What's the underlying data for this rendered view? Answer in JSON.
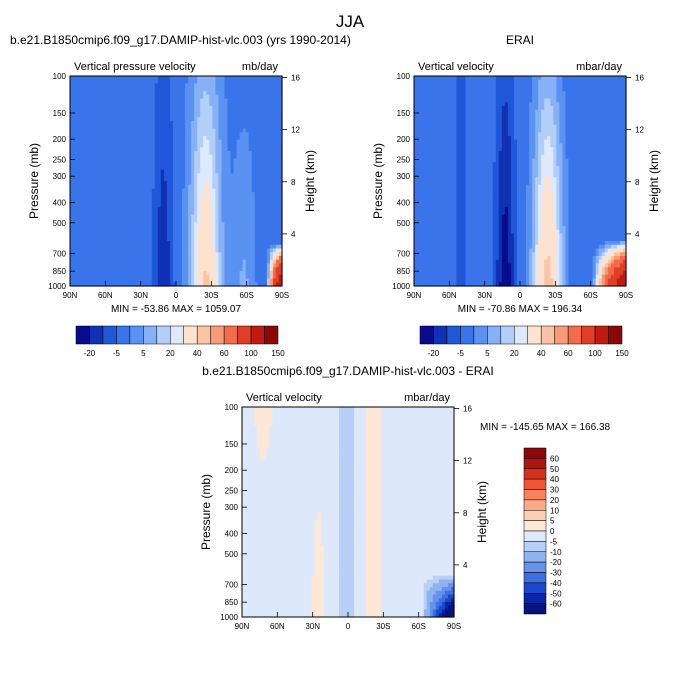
{
  "figure_title": "JJA",
  "chart_data": [
    {
      "type": "heatmap",
      "id": "model",
      "title": "b.e21.B1850cmip6.f09_g17.DAMIP-hist-vlc.003 (yrs 1990-2014)",
      "left_label": "Vertical pressure velocity",
      "right_label": "mb/day",
      "ylabel": "Pressure (mb)",
      "ylabel_right": "Height (km)",
      "x_ticks": [
        "90N",
        "60N",
        "30N",
        "0",
        "30S",
        "60S",
        "90S"
      ],
      "y_ticks": [
        "100",
        "150",
        "200",
        "250",
        "300",
        "400",
        "500",
        "700",
        "850",
        "1000"
      ],
      "height_ticks": [
        "16",
        "12",
        "8",
        "4"
      ],
      "stats": "MIN = -53.86   MAX = 1059.07",
      "min": -53.86,
      "max": 1059.07,
      "colorbar_levels": [
        "-20",
        "-5",
        "5",
        "20",
        "40",
        "60",
        "100",
        "150"
      ],
      "structure": "Weak descent (-10 to -20 mb/day) over most of the domain; strong ascent core (< -30) near 10N-5N; strong descent column 10S-40S (> 20); strong ascent below 700 mb near 80S-90S."
    },
    {
      "type": "heatmap",
      "id": "obs",
      "title": "ERAI",
      "left_label": "Vertical velocity",
      "right_label": "mbar/day",
      "ylabel": "Pressure (mb)",
      "ylabel_right": "Height (km)",
      "x_ticks": [
        "90N",
        "60N",
        "30N",
        "0",
        "30S",
        "60S",
        "90S"
      ],
      "y_ticks": [
        "100",
        "150",
        "200",
        "250",
        "300",
        "400",
        "500",
        "700",
        "850",
        "1000"
      ],
      "height_ticks": [
        "16",
        "12",
        "8",
        "4"
      ],
      "stats": "MIN = -70.86   MAX = 196.34",
      "min": -70.86,
      "max": 196.34,
      "colorbar_levels": [
        "-20",
        "-5",
        "5",
        "20",
        "40",
        "60",
        "100",
        "150"
      ],
      "structure": "Similar pattern to model; strong ascent core near 10N; descent column 10S-40S; strong positive values below 700 mb at 70S-90S."
    },
    {
      "type": "heatmap",
      "id": "diff",
      "title": "b.e21.B1850cmip6.f09_g17.DAMIP-hist-vlc.003 - ERAI",
      "left_label": "Vertical velocity",
      "right_label": "mbar/day",
      "ylabel": "Pressure (mb)",
      "ylabel_right": "Height (km)",
      "x_ticks": [
        "90N",
        "60N",
        "30N",
        "0",
        "30S",
        "60S",
        "90S"
      ],
      "y_ticks": [
        "100",
        "150",
        "200",
        "250",
        "300",
        "400",
        "500",
        "700",
        "850",
        "1000"
      ],
      "height_ticks": [
        "16",
        "12",
        "8",
        "4"
      ],
      "stats": "MIN = -145.65   MAX = 166.38",
      "min": -145.65,
      "max": 166.38,
      "colorbar_levels": [
        "60",
        "50",
        "40",
        "30",
        "20",
        "10",
        "5",
        "0",
        "-5",
        "-10",
        "-20",
        "-30",
        "-40",
        "-50",
        "-60"
      ],
      "structure": "Mostly small differences (-5 to 5); light positive bands near 30N-20N and 10S-20S; strong negative (< -50) below 700 mb near 80S-90S."
    }
  ],
  "colors": {
    "seq_colorbar": [
      "#0a0a8c",
      "#1131b4",
      "#1f57d8",
      "#3a74ea",
      "#5b92f2",
      "#86b1f7",
      "#b3cff9",
      "#deeafc",
      "#fde3cf",
      "#fbc4a4",
      "#f89b77",
      "#f26b4a",
      "#e13e28",
      "#c01a12",
      "#8a0808"
    ],
    "diff_colorbar": [
      "#8a0808",
      "#b01410",
      "#d4301c",
      "#ef5635",
      "#f8835e",
      "#fbaa89",
      "#fdd0b6",
      "#fde7d7",
      "#dde8fa",
      "#b8d0f6",
      "#8fb3f1",
      "#6592ea",
      "#3e6ee0",
      "#1c48cc",
      "#0a26a8",
      "#06157a"
    ]
  }
}
